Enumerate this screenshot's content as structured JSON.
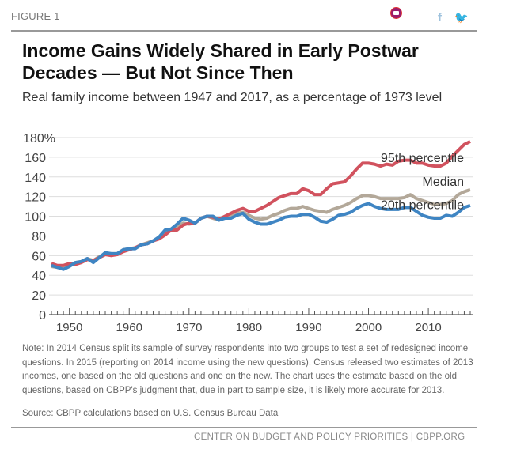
{
  "header": {
    "figure_label": "FIGURE 1",
    "icons": [
      "bookmark-icon",
      "facebook-icon",
      "twitter-icon"
    ]
  },
  "chart_data": {
    "type": "line",
    "title": "Income Gains Widely Shared in Early Postwar Decades — But Not Since Then",
    "subtitle": "Real family income between 1947 and 2017, as a percentage of 1973 level",
    "xlabel": "",
    "ylabel": "",
    "xlim": [
      1947,
      2017
    ],
    "ylim": [
      0,
      180
    ],
    "y_ticks": [
      "0",
      "20",
      "40",
      "60",
      "80",
      "100",
      "120",
      "140",
      "160",
      "180%"
    ],
    "y_tick_values": [
      0,
      20,
      40,
      60,
      80,
      100,
      120,
      140,
      160,
      180
    ],
    "x_ticks": [
      "1950",
      "1960",
      "1970",
      "1980",
      "1990",
      "2000",
      "2010"
    ],
    "x_tick_values": [
      1950,
      1960,
      1970,
      1980,
      1990,
      2000,
      2010
    ],
    "grid": true,
    "x_start": 1947,
    "series": [
      {
        "name": "95th percentile",
        "color": "#d1525e",
        "values": [
          52,
          50,
          50,
          52,
          51,
          53,
          56,
          55,
          58,
          61,
          60,
          61,
          64,
          66,
          68,
          71,
          72,
          75,
          77,
          81,
          86,
          86,
          91,
          93,
          93,
          98,
          100,
          99,
          97,
          100,
          103,
          106,
          108,
          105,
          105,
          108,
          111,
          115,
          119,
          121,
          123,
          123,
          128,
          126,
          122,
          122,
          128,
          133,
          134,
          135,
          141,
          148,
          154,
          154,
          153,
          151,
          153,
          152,
          156,
          157,
          157,
          154,
          154,
          152,
          151,
          151,
          154,
          161,
          167,
          173,
          176
        ]
      },
      {
        "name": "Median",
        "color": "#b3a899",
        "values": [
          49,
          48,
          47,
          50,
          53,
          54,
          57,
          55,
          59,
          62,
          62,
          62,
          66,
          67,
          68,
          71,
          73,
          75,
          78,
          83,
          86,
          89,
          93,
          92,
          93,
          98,
          100,
          98,
          96,
          99,
          100,
          103,
          104,
          101,
          98,
          97,
          98,
          101,
          103,
          106,
          108,
          108,
          110,
          108,
          106,
          105,
          104,
          107,
          109,
          111,
          114,
          118,
          121,
          121,
          120,
          118,
          118,
          118,
          118,
          119,
          122,
          118,
          116,
          114,
          112,
          112,
          113,
          116,
          122,
          125,
          127
        ]
      },
      {
        "name": "20th percentile",
        "color": "#3f85c3",
        "values": [
          50,
          48,
          46,
          49,
          53,
          54,
          57,
          53,
          58,
          63,
          62,
          62,
          66,
          67,
          67,
          71,
          72,
          75,
          79,
          86,
          87,
          92,
          98,
          96,
          93,
          98,
          100,
          100,
          96,
          98,
          98,
          101,
          103,
          97,
          94,
          92,
          92,
          94,
          96,
          99,
          100,
          100,
          102,
          102,
          99,
          95,
          94,
          97,
          101,
          102,
          104,
          108,
          111,
          113,
          110,
          108,
          107,
          107,
          107,
          109,
          109,
          105,
          101,
          99,
          98,
          98,
          101,
          100,
          104,
          109,
          111
        ]
      }
    ]
  },
  "notes": "Note: In 2014 Census split its sample of survey respondents into two groups to test a set of redesigned income questions.  In 2015 (reporting on 2014 income using the new questions), Census released two estimates of 2013 incomes, one based on the old questions and one on the new.  The chart uses the estimate based on the old questions, based on CBPP's judgment that, due in part to sample size, it is likely more accurate for 2013.",
  "source": "Source: CBPP calculations based on U.S. Census Bureau Data",
  "footer": "CENTER ON BUDGET AND POLICY PRIORITIES | CBPP.ORG"
}
